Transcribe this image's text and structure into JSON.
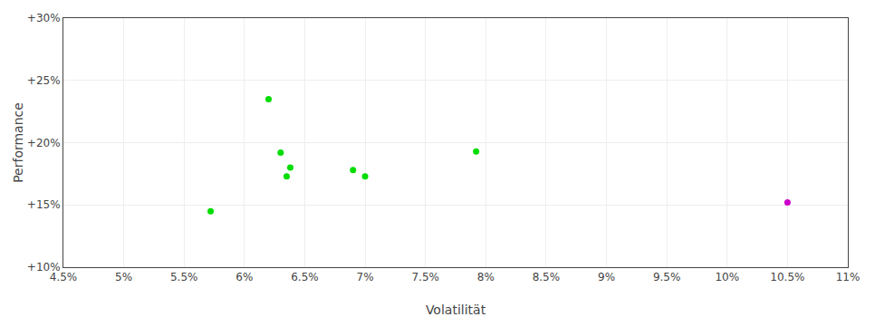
{
  "chart_data": {
    "type": "scatter",
    "xlabel": "Volatilität",
    "ylabel": "Performance",
    "series": [
      {
        "color": "#00dd00",
        "x": [
          5.72,
          6.2,
          6.3,
          6.38,
          6.35,
          6.9,
          7.0,
          7.92
        ],
        "values": [
          14.5,
          23.5,
          19.2,
          18.0,
          17.3,
          17.8,
          17.3,
          19.3
        ]
      },
      {
        "color": "#cc00cc",
        "x": [
          10.5
        ],
        "values": [
          15.2
        ]
      }
    ],
    "xlim": [
      4.5,
      11.0
    ],
    "xticks": [
      {
        "value": 4.5,
        "label": "4.5%"
      },
      {
        "value": 5.0,
        "label": "5%"
      },
      {
        "value": 5.5,
        "label": "5.5%"
      },
      {
        "value": 6.0,
        "label": "6%"
      },
      {
        "value": 6.5,
        "label": "6.5%"
      },
      {
        "value": 7.0,
        "label": "7%"
      },
      {
        "value": 7.5,
        "label": "7.5%"
      },
      {
        "value": 8.0,
        "label": "8%"
      },
      {
        "value": 8.5,
        "label": "8.5%"
      },
      {
        "value": 9.0,
        "label": "9%"
      },
      {
        "value": 9.5,
        "label": "9.5%"
      },
      {
        "value": 10.0,
        "label": "10%"
      },
      {
        "value": 10.5,
        "label": "10.5%"
      },
      {
        "value": 11.0,
        "label": "11%"
      }
    ],
    "ylim": [
      10,
      30
    ],
    "yticks": [
      {
        "value": 10,
        "label": "+10%"
      },
      {
        "value": 15,
        "label": "+15%"
      },
      {
        "value": 20,
        "label": "+20%"
      },
      {
        "value": 25,
        "label": "+25%"
      },
      {
        "value": 30,
        "label": "+30%"
      }
    ],
    "grid": true
  }
}
